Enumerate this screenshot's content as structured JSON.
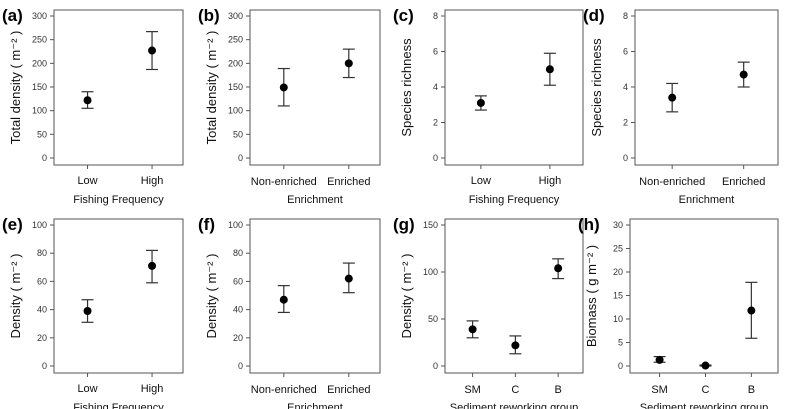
{
  "chart_data": [
    {
      "type": "scatter",
      "panel": "(a)",
      "ylabel": "Total density ( m⁻² )",
      "xlabel": "Fishing Frequency",
      "categories": [
        "Low",
        "High"
      ],
      "yticks": [
        0,
        50,
        100,
        150,
        200,
        250,
        300
      ],
      "ylim": [
        0,
        300
      ],
      "values": [
        122,
        227
      ],
      "lower": [
        105,
        187
      ],
      "upper": [
        140,
        267
      ]
    },
    {
      "type": "scatter",
      "panel": "(b)",
      "ylabel": "Total density ( m⁻² )",
      "xlabel": "Enrichment",
      "categories": [
        "Non-enriched",
        "Enriched"
      ],
      "yticks": [
        0,
        50,
        100,
        150,
        200,
        250,
        300
      ],
      "ylim": [
        0,
        300
      ],
      "values": [
        149,
        200
      ],
      "lower": [
        110,
        170
      ],
      "upper": [
        189,
        230
      ]
    },
    {
      "type": "scatter",
      "panel": "(c)",
      "ylabel": "Species richness",
      "xlabel": "Fishing Frequency",
      "categories": [
        "Low",
        "High"
      ],
      "yticks": [
        0,
        2,
        4,
        6,
        8
      ],
      "ylim": [
        0,
        8
      ],
      "values": [
        3.1,
        5.0
      ],
      "lower": [
        2.7,
        4.1
      ],
      "upper": [
        3.5,
        5.9
      ]
    },
    {
      "type": "scatter",
      "panel": "(d)",
      "ylabel": "Species richness",
      "xlabel": "Enrichment",
      "categories": [
        "Non-enriched",
        "Enriched"
      ],
      "yticks": [
        0,
        2,
        4,
        6,
        8
      ],
      "ylim": [
        0,
        8
      ],
      "values": [
        3.4,
        4.7
      ],
      "lower": [
        2.6,
        4.0
      ],
      "upper": [
        4.2,
        5.4
      ]
    },
    {
      "type": "scatter",
      "panel": "(e)",
      "ylabel": "Density ( m⁻² )",
      "xlabel": "Fishing Frequency",
      "categories": [
        "Low",
        "High"
      ],
      "yticks": [
        0,
        20,
        40,
        60,
        80,
        100
      ],
      "ylim": [
        0,
        100
      ],
      "values": [
        39,
        71
      ],
      "lower": [
        31,
        59
      ],
      "upper": [
        47,
        82
      ]
    },
    {
      "type": "scatter",
      "panel": "(f)",
      "ylabel": "Density ( m⁻² )",
      "xlabel": "Enrichment",
      "categories": [
        "Non-enriched",
        "Enriched"
      ],
      "yticks": [
        0,
        20,
        40,
        60,
        80,
        100
      ],
      "ylim": [
        0,
        100
      ],
      "values": [
        47,
        62
      ],
      "lower": [
        38,
        52
      ],
      "upper": [
        57,
        73
      ]
    },
    {
      "type": "scatter",
      "panel": "(g)",
      "ylabel": "Density ( m⁻² )",
      "xlabel": "Sediment reworking group",
      "categories": [
        "SM",
        "C",
        "B"
      ],
      "yticks": [
        0,
        50,
        100,
        150
      ],
      "ylim": [
        0,
        150
      ],
      "values": [
        39,
        22,
        104
      ],
      "lower": [
        30,
        13,
        93
      ],
      "upper": [
        48,
        32,
        114
      ]
    },
    {
      "type": "scatter",
      "panel": "(h)",
      "ylabel": "Biomass ( g m⁻² )",
      "xlabel": "Sediment reworking group",
      "categories": [
        "SM",
        "C",
        "B"
      ],
      "yticks": [
        0,
        5,
        10,
        15,
        20,
        25,
        30
      ],
      "ylim": [
        0,
        30
      ],
      "values": [
        1.3,
        0.1,
        11.8
      ],
      "lower": [
        0.8,
        0.0,
        5.9
      ],
      "upper": [
        2.0,
        0.2,
        17.8
      ]
    }
  ]
}
